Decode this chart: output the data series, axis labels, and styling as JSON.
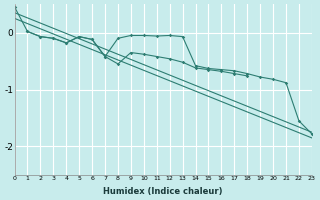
{
  "xlabel": "Humidex (Indice chaleur)",
  "background_color": "#c8ecec",
  "grid_color": "#ffffff",
  "line_color": "#2d7d72",
  "xlim": [
    0,
    23
  ],
  "ylim": [
    -2.5,
    0.5
  ],
  "yticks": [
    0,
    -1,
    -2
  ],
  "xticks": [
    0,
    1,
    2,
    3,
    4,
    5,
    6,
    7,
    8,
    9,
    10,
    11,
    12,
    13,
    14,
    15,
    16,
    17,
    18,
    19,
    20,
    21,
    22,
    23
  ],
  "straight_line1": {
    "x": [
      0,
      23
    ],
    "y": [
      0.35,
      -1.75
    ]
  },
  "straight_line2": {
    "x": [
      0,
      23
    ],
    "y": [
      0.25,
      -1.85
    ]
  },
  "curve_wiggly": {
    "x": [
      0,
      1,
      2,
      3,
      4,
      5,
      6,
      7,
      8,
      9,
      10,
      11,
      12,
      13,
      14,
      15,
      16,
      17,
      18,
      19,
      20,
      21,
      22,
      23
    ],
    "y": [
      0.45,
      0.02,
      -0.07,
      -0.1,
      -0.18,
      -0.07,
      -0.12,
      -0.42,
      -0.1,
      -0.05,
      -0.05,
      -0.06,
      -0.05,
      -0.07,
      -0.58,
      -0.63,
      -0.65,
      -0.67,
      -0.72,
      -0.78,
      -0.82,
      -0.88,
      -1.55,
      -1.78
    ]
  },
  "curve_wiggly2": {
    "x": [
      1,
      2,
      3,
      4,
      5,
      6,
      7,
      8,
      9,
      10,
      11,
      12,
      13,
      14,
      15,
      16,
      17,
      18
    ],
    "y": [
      0.02,
      -0.07,
      -0.1,
      -0.18,
      -0.07,
      -0.12,
      -0.42,
      -0.55,
      -0.35,
      -0.38,
      -0.42,
      -0.46,
      -0.52,
      -0.62,
      -0.65,
      -0.68,
      -0.72,
      -0.76
    ]
  }
}
